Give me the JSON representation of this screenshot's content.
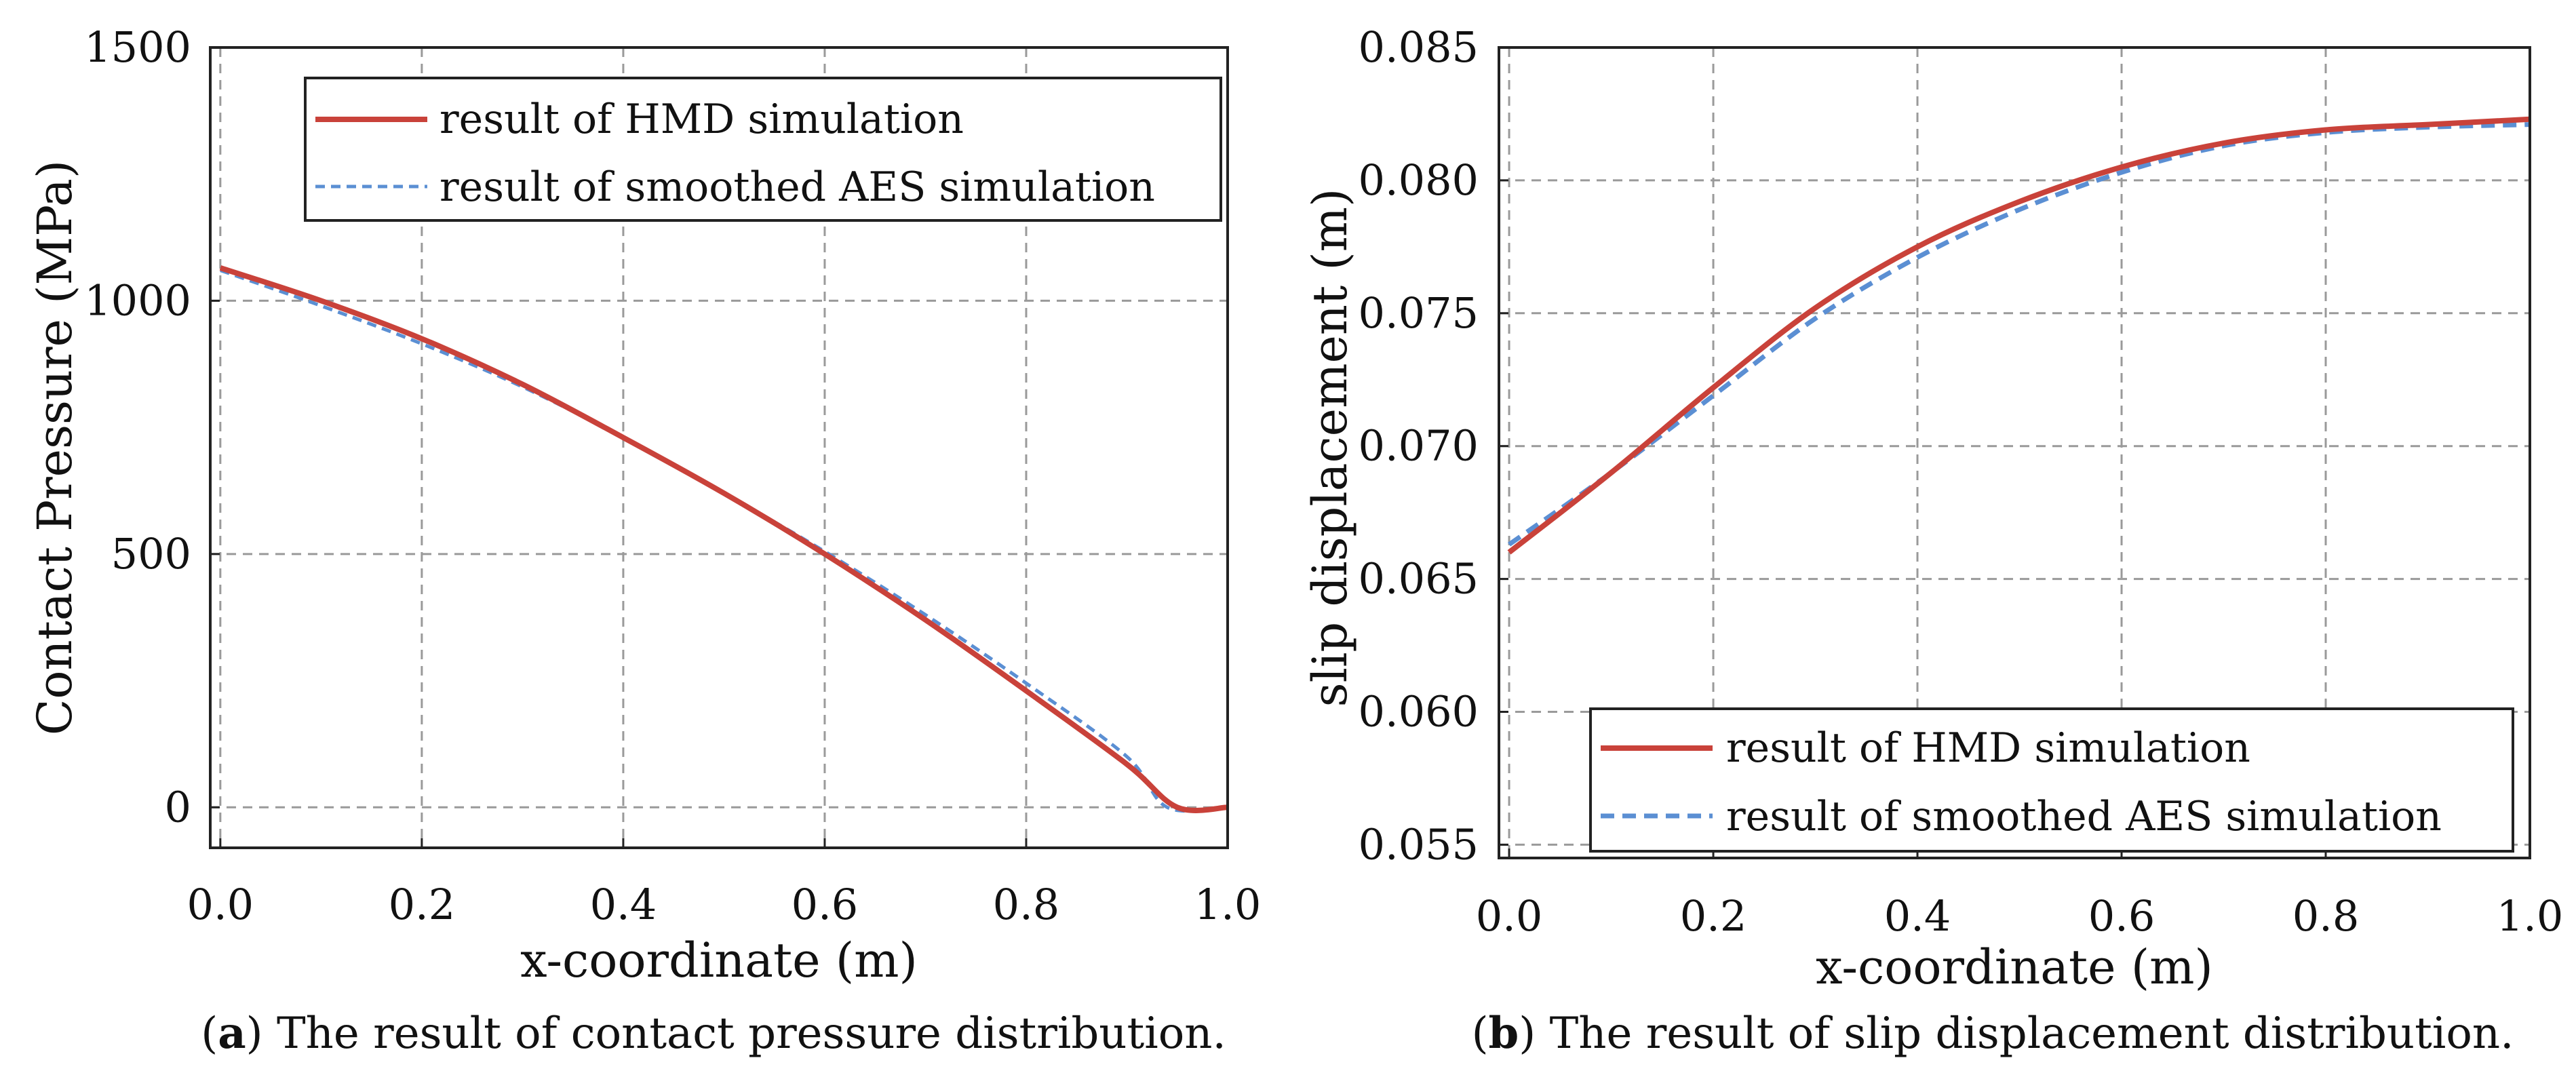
{
  "figure": {
    "captions": [
      {
        "open": "(",
        "letter": "a",
        "close": ")",
        "text": " The result of contact pressure distribution."
      },
      {
        "open": "(",
        "letter": "b",
        "close": ")",
        "text": " The result of slip displacement distribution."
      }
    ]
  },
  "colors": {
    "hmd": "#c9423a",
    "aes": "#5b8fd3",
    "grid": "#9a9a9a",
    "frame": "#222222"
  },
  "chart_data": [
    {
      "type": "line",
      "id": "a",
      "title": "",
      "xlabel": "x-coordinate (m)",
      "ylabel": "Contact Pressure (MPa)",
      "xlim": [
        -0.01,
        1.0
      ],
      "ylim": [
        -80,
        1500
      ],
      "xticks": [
        0.0,
        0.2,
        0.4,
        0.6,
        0.8,
        1.0
      ],
      "xtick_labels": [
        "0.0",
        "0.2",
        "0.4",
        "0.6",
        "0.8",
        "1.0"
      ],
      "yticks": [
        0,
        500,
        1000,
        1500
      ],
      "ytick_labels": [
        "0",
        "500",
        "1000",
        "1500"
      ],
      "grid": true,
      "legend_position": "top-right",
      "series": [
        {
          "name": "result of HMD simulation",
          "style": "solid",
          "x": [
            0.0,
            0.1,
            0.2,
            0.3,
            0.4,
            0.5,
            0.6,
            0.7,
            0.8,
            0.9,
            0.95,
            1.0
          ],
          "y": [
            1065,
            1000,
            925,
            835,
            730,
            620,
            500,
            370,
            230,
            85,
            0,
            0
          ]
        },
        {
          "name": "result of smoothed AES simulation",
          "style": "dashed",
          "x": [
            0.0,
            0.1,
            0.2,
            0.3,
            0.4,
            0.5,
            0.6,
            0.7,
            0.8,
            0.9,
            0.94,
            1.0
          ],
          "y": [
            1060,
            990,
            915,
            830,
            730,
            620,
            505,
            380,
            245,
            100,
            0,
            0
          ]
        }
      ]
    },
    {
      "type": "line",
      "id": "b",
      "title": "",
      "xlabel": "x-coordinate (m)",
      "ylabel": "slip displacement (m)",
      "xlim": [
        -0.01,
        1.0
      ],
      "ylim": [
        0.0545,
        0.085
      ],
      "xticks": [
        0.0,
        0.2,
        0.4,
        0.6,
        0.8,
        1.0
      ],
      "xtick_labels": [
        "0.0",
        "0.2",
        "0.4",
        "0.6",
        "0.8",
        "1.0"
      ],
      "yticks": [
        0.055,
        0.06,
        0.065,
        0.07,
        0.075,
        0.08,
        0.085
      ],
      "ytick_labels": [
        "0.055",
        "0.060",
        "0.065",
        "0.070",
        "0.075",
        "0.080",
        "0.085"
      ],
      "grid": true,
      "legend_position": "bottom-right",
      "series": [
        {
          "name": "result of HMD simulation",
          "style": "solid",
          "x": [
            0.0,
            0.1,
            0.2,
            0.3,
            0.4,
            0.5,
            0.6,
            0.7,
            0.8,
            0.9,
            1.0
          ],
          "y": [
            0.066,
            0.069,
            0.0722,
            0.0752,
            0.0775,
            0.0792,
            0.0805,
            0.0814,
            0.0819,
            0.0821,
            0.0823
          ]
        },
        {
          "name": "result of smoothed AES simulation",
          "style": "dashed",
          "x": [
            0.0,
            0.1,
            0.2,
            0.3,
            0.4,
            0.5,
            0.6,
            0.7,
            0.8,
            0.9,
            1.0
          ],
          "y": [
            0.0663,
            0.069,
            0.0719,
            0.0748,
            0.0771,
            0.0789,
            0.0803,
            0.0813,
            0.0818,
            0.082,
            0.0821
          ]
        }
      ]
    }
  ]
}
